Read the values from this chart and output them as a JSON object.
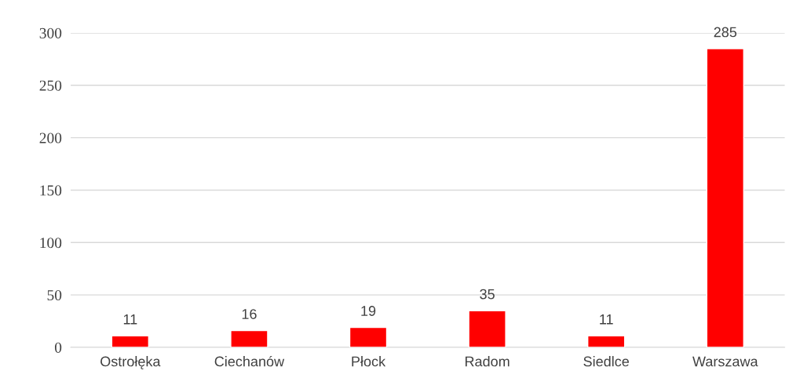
{
  "chart_data": {
    "type": "bar",
    "categories": [
      "Ostrołęka",
      "Ciechanów",
      "Płock",
      "Radom",
      "Siedlce",
      "Warszawa"
    ],
    "values": [
      11,
      16,
      19,
      35,
      11,
      285
    ],
    "color": "#ff0000",
    "ylim": [
      0,
      300
    ],
    "yticks": [
      0,
      50,
      100,
      150,
      200,
      250,
      300
    ],
    "grid": "y",
    "data_labels": true
  }
}
